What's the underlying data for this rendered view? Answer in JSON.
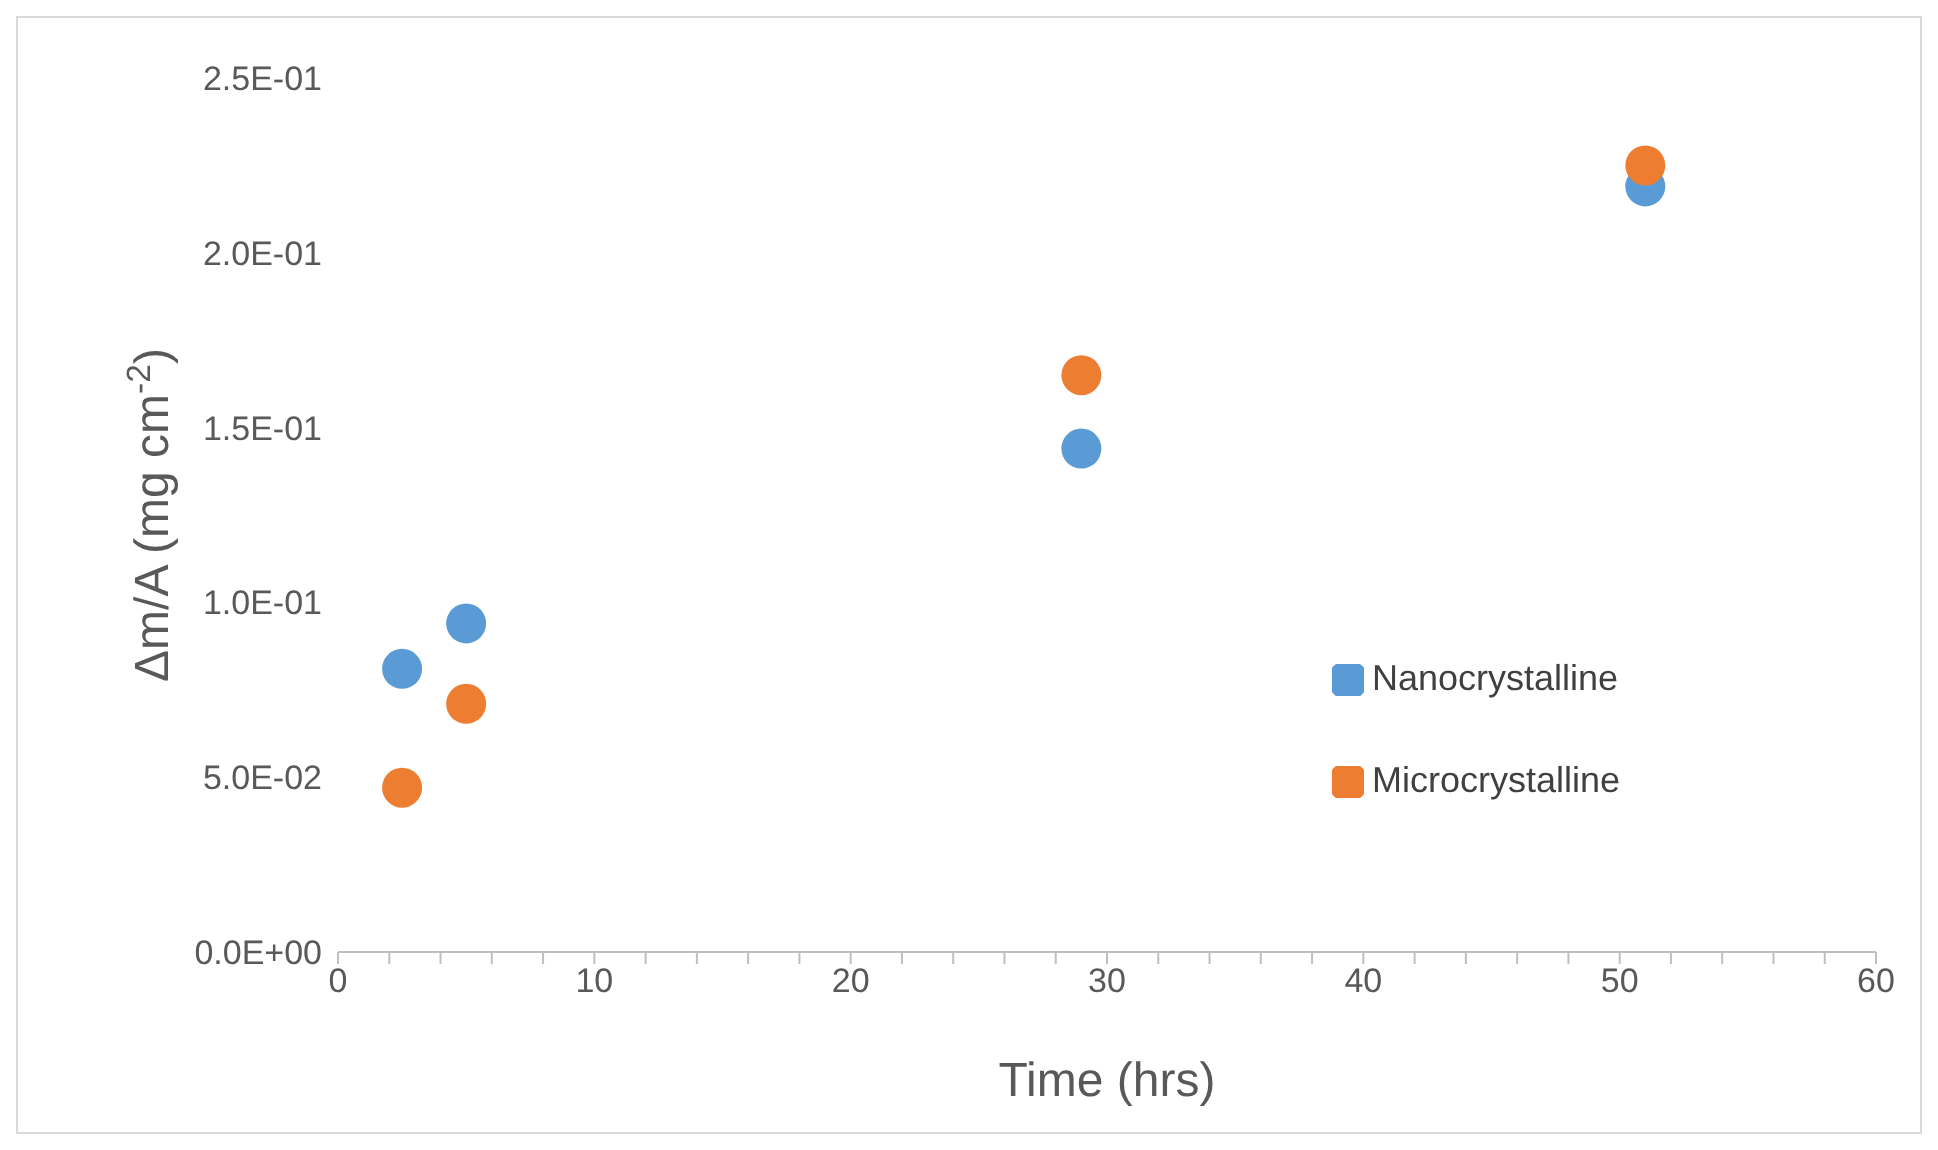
{
  "chart_data": {
    "type": "scatter",
    "xlabel": "Time (hrs)",
    "ylabel": "Δm/A (mg cm$^{-2}$)",
    "xlim": [
      0,
      60
    ],
    "xticks": [
      0,
      {
        "value": 2,
        "label": null
      },
      {
        "value": 4,
        "label": null
      },
      {
        "value": 6,
        "label": null
      },
      {
        "value": 8,
        "label": null
      },
      10,
      {
        "value": 12,
        "label": null
      },
      {
        "value": 14,
        "label": null
      },
      {
        "value": 16,
        "label": null
      },
      {
        "value": 18,
        "label": null
      },
      20,
      {
        "value": 22,
        "label": null
      },
      {
        "value": 24,
        "label": null
      },
      {
        "value": 26,
        "label": null
      },
      {
        "value": 28,
        "label": null
      },
      30,
      {
        "value": 32,
        "label": null
      },
      {
        "value": 34,
        "label": null
      },
      {
        "value": 36,
        "label": null
      },
      {
        "value": 38,
        "label": null
      },
      40,
      {
        "value": 42,
        "label": null
      },
      {
        "value": 44,
        "label": null
      },
      {
        "value": 46,
        "label": null
      },
      {
        "value": 48,
        "label": null
      },
      50,
      {
        "value": 52,
        "label": null
      },
      {
        "value": 54,
        "label": null
      },
      {
        "value": 56,
        "label": null
      },
      {
        "value": 58,
        "label": null
      },
      60
    ],
    "ylim": [
      0,
      0.25
    ],
    "yticks": [
      {
        "value": 0,
        "label": "0.0E+00"
      },
      {
        "value": 0.05,
        "label": "5.0E-02"
      },
      {
        "value": 0.1,
        "label": "1.0E-01"
      },
      {
        "value": 0.15,
        "label": "1.5E-01"
      },
      {
        "value": 0.2,
        "label": "2.0E-01"
      },
      {
        "value": 0.25,
        "label": "2.5E-01"
      }
    ],
    "x": [
      2.5,
      5,
      29,
      51
    ],
    "series": [
      {
        "name": "Nanocrystalline",
        "color": "#5b9bd5",
        "values": [
          0.081,
          0.094,
          0.144,
          0.219
        ]
      },
      {
        "name": "Microcrystalline",
        "color": "#ed7d31",
        "values": [
          0.047,
          0.071,
          0.165,
          0.225
        ]
      }
    ],
    "marker": "circle",
    "grid": false,
    "legend": "right"
  }
}
